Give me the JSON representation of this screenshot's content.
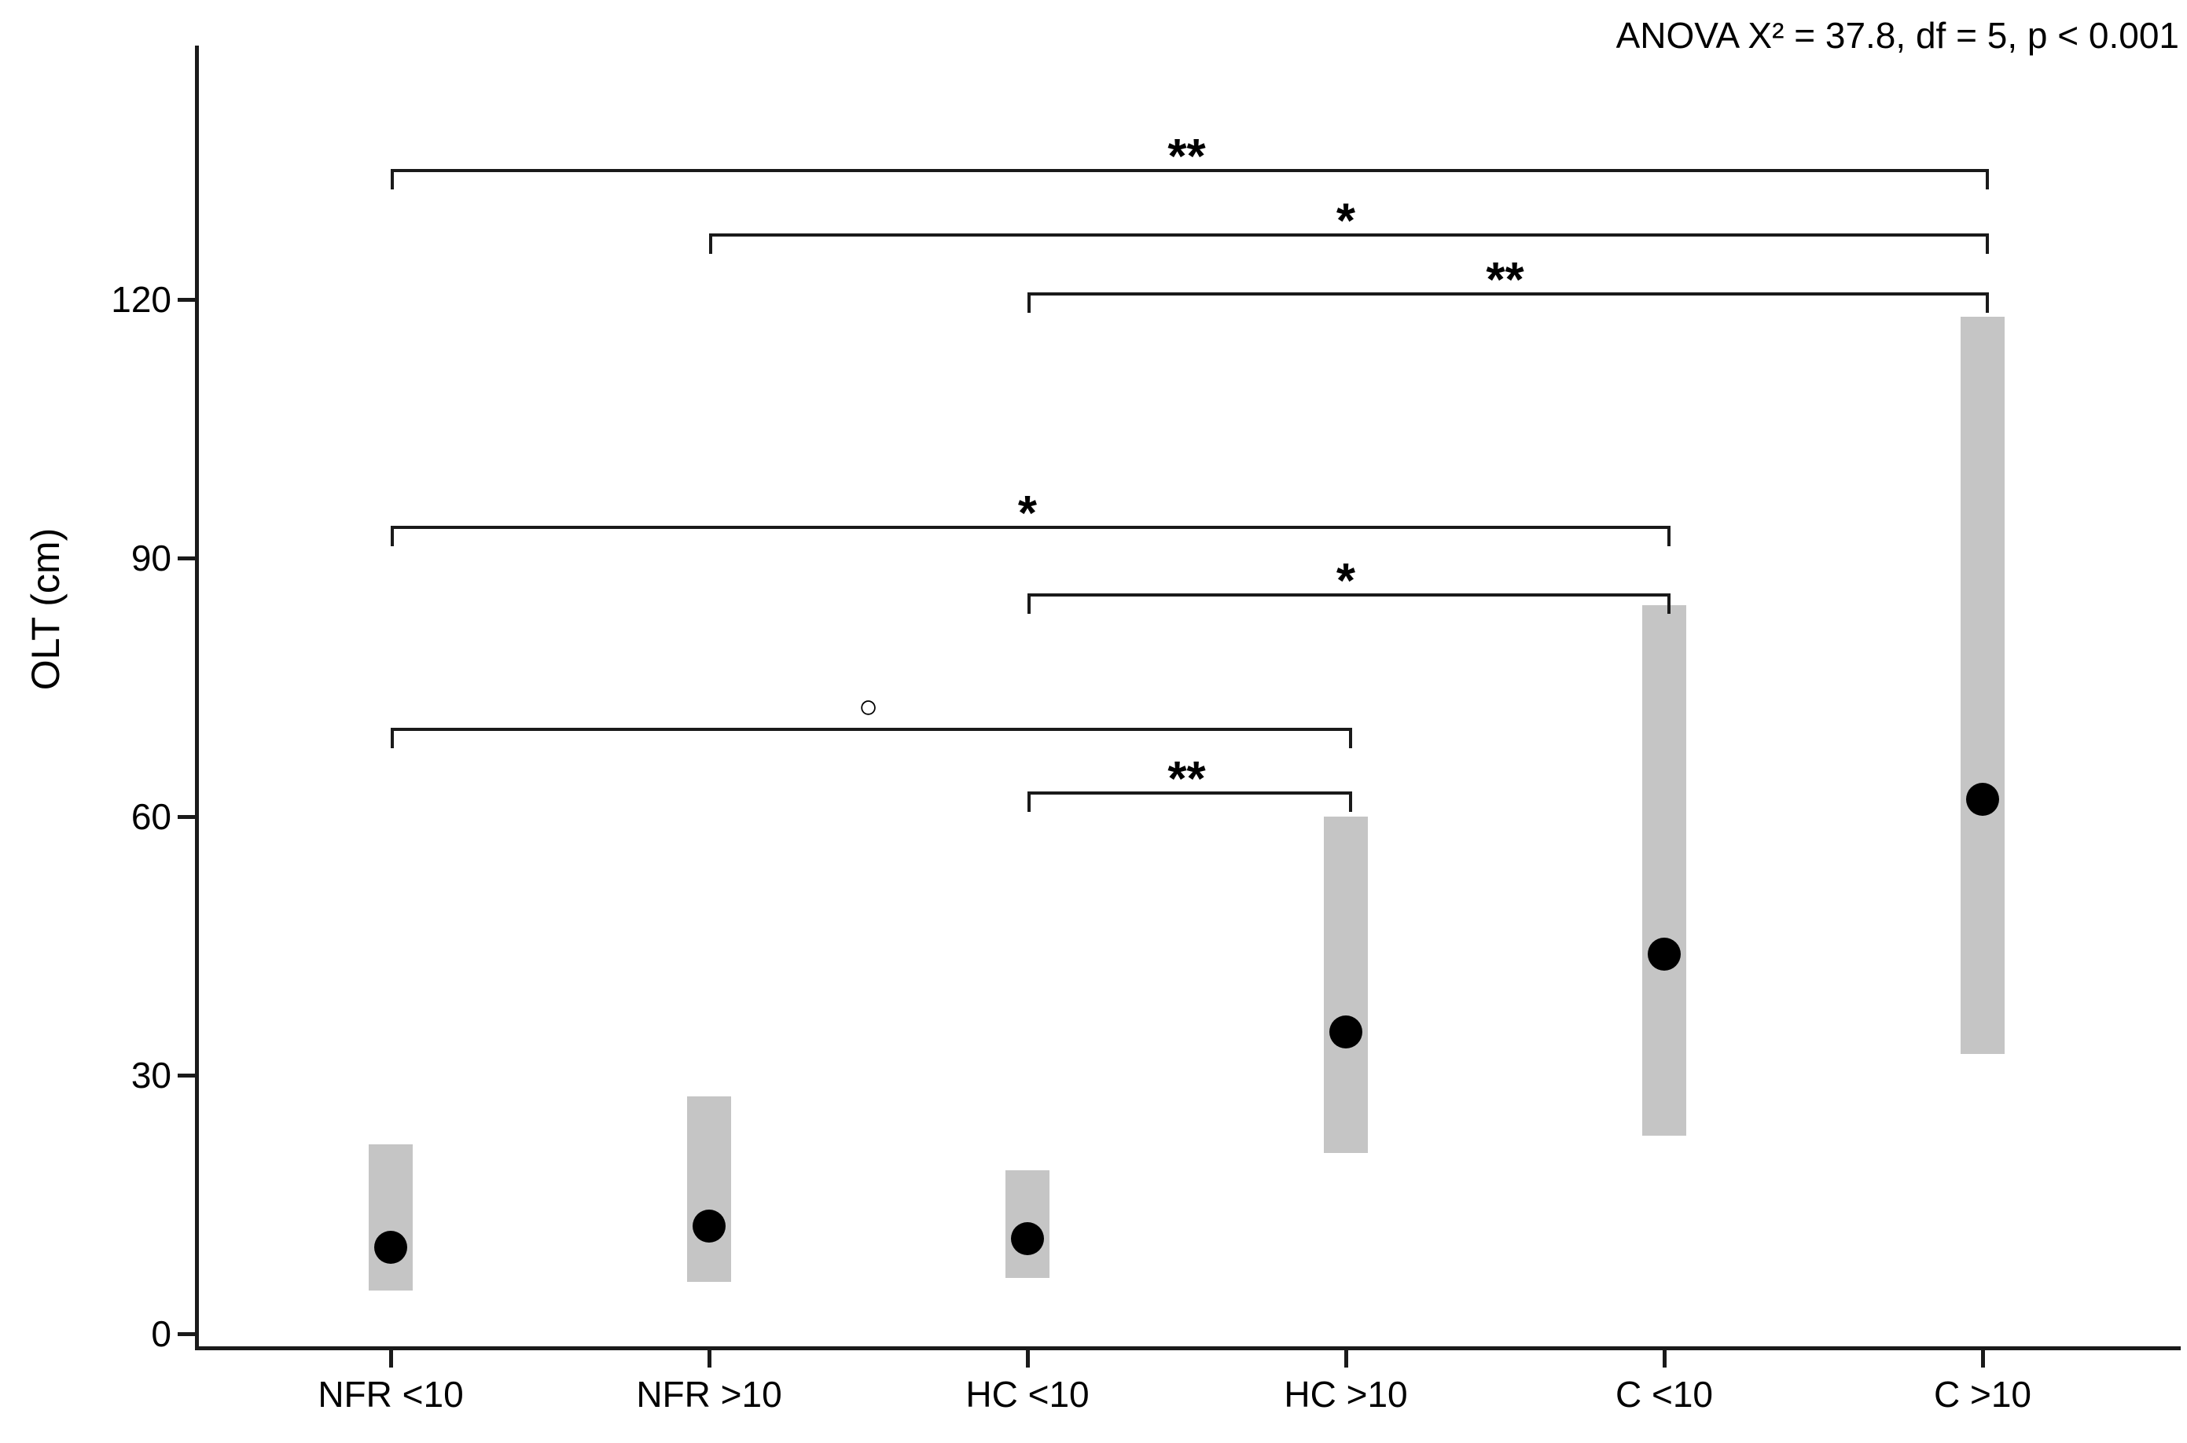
{
  "chart_data": {
    "type": "range-dot",
    "title": "",
    "ylabel": "OLT (cm)",
    "anova_annotation": "ANOVA X² = 37.8, df = 5, p < 0.001",
    "categories": [
      "NFR <10",
      "NFR >10",
      "HC <10",
      "HC >10",
      "C <10",
      "C >10"
    ],
    "series": [
      {
        "name": "range-low",
        "values": [
          5,
          6,
          6.5,
          21,
          23,
          32.5
        ]
      },
      {
        "name": "range-high",
        "values": [
          22,
          27.5,
          19,
          60,
          84.5,
          118
        ]
      },
      {
        "name": "median",
        "values": [
          10,
          12.5,
          11,
          35,
          44,
          62
        ]
      }
    ],
    "yticks": [
      0,
      30,
      60,
      90,
      120
    ],
    "ylim": [
      -1.5,
      149.5
    ],
    "grid": "off",
    "bar_color": "#c5c5c5",
    "dot_color": "#000000",
    "axis_color": "#1a1a1a",
    "significance_brackets": [
      {
        "from": "NFR <10",
        "to": "C >10",
        "label": "**",
        "y": 135.1
      },
      {
        "from": "NFR >10",
        "to": "C >10",
        "label": "*",
        "y": 127.7
      },
      {
        "from": "HC <10",
        "to": "C >10",
        "label": "**",
        "y": 120.8
      },
      {
        "from": "NFR <10",
        "to": "C <10",
        "label": "*",
        "y": 93.7
      },
      {
        "from": "HC <10",
        "to": "C <10",
        "label": "*",
        "y": 85.9
      },
      {
        "from": "NFR <10",
        "to": "HC >10",
        "label": "○",
        "y": 70.3
      },
      {
        "from": "HC <10",
        "to": "HC >10",
        "label": "**",
        "y": 62.9
      }
    ]
  }
}
